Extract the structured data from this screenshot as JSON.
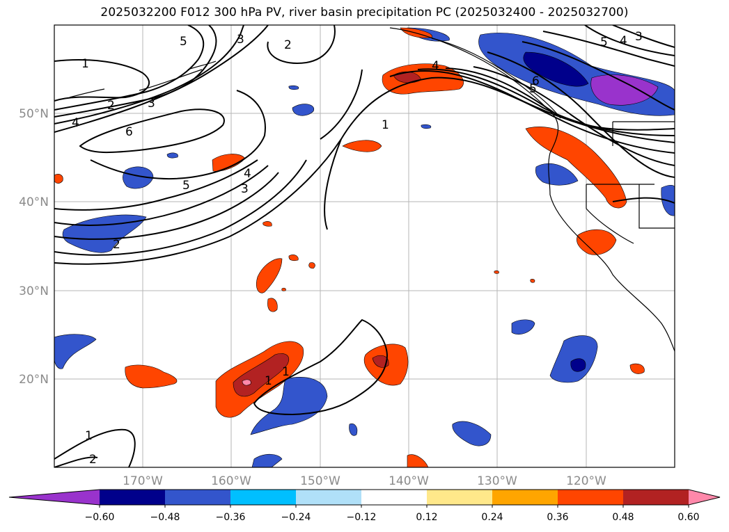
{
  "title": "2025032200 F012 300 hPa PV, river basin precipitation PC (2025032400 - 2025032700)",
  "lat_labels": [
    "50°N",
    "40°N",
    "30°N",
    "20°N"
  ],
  "lon_labels": [
    "170°W",
    "160°W",
    "150°W",
    "140°W",
    "130°W",
    "120°W"
  ],
  "colorbar": {
    "tick_labels": [
      "−0.60",
      "−0.48",
      "−0.36",
      "−0.24",
      "−0.12",
      "0.12",
      "0.24",
      "0.36",
      "0.48",
      "0.60"
    ],
    "levels": [
      -0.6,
      -0.48,
      -0.36,
      -0.24,
      -0.12,
      0.12,
      0.24,
      0.36,
      0.48,
      0.6
    ],
    "colors": [
      "#9933cc",
      "#00008b",
      "#3355cc",
      "#00bfff",
      "#b0e0f8",
      "#ffffff",
      "#ffe88a",
      "#ffa500",
      "#ff4500",
      "#b22222",
      "#ff88aa"
    ]
  },
  "contour_labels": [
    "1",
    "2",
    "3",
    "4",
    "5",
    "6",
    "1",
    "2",
    "5",
    "4",
    "3",
    "1",
    "4",
    "5",
    "5",
    "4",
    "3",
    "6",
    "3",
    "2",
    "1",
    "1",
    "2"
  ],
  "map": {
    "projection": "Mercator",
    "lat_range": [
      10,
      60
    ],
    "lon_range": [
      -180,
      -110
    ],
    "grid": true
  }
}
